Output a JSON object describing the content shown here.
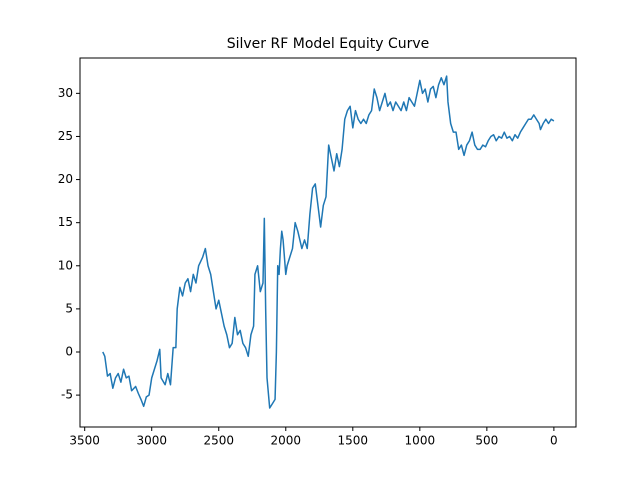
{
  "chart_data": {
    "type": "line",
    "title": "Silver RF Model Equity Curve",
    "x": [
      3365,
      3350,
      3330,
      3310,
      3290,
      3270,
      3250,
      3230,
      3210,
      3190,
      3170,
      3150,
      3120,
      3100,
      3080,
      3060,
      3040,
      3020,
      3000,
      2980,
      2960,
      2940,
      2930,
      2900,
      2880,
      2860,
      2840,
      2820,
      2810,
      2790,
      2770,
      2750,
      2730,
      2710,
      2690,
      2670,
      2650,
      2620,
      2600,
      2580,
      2560,
      2540,
      2520,
      2500,
      2480,
      2460,
      2440,
      2420,
      2400,
      2380,
      2360,
      2340,
      2320,
      2300,
      2280,
      2260,
      2240,
      2230,
      2210,
      2190,
      2170,
      2160,
      2150,
      2140,
      2120,
      2100,
      2080,
      2070,
      2060,
      2050,
      2040,
      2030,
      2020,
      2000,
      1990,
      1970,
      1950,
      1930,
      1910,
      1880,
      1860,
      1840,
      1820,
      1800,
      1780,
      1760,
      1740,
      1720,
      1700,
      1690,
      1680,
      1660,
      1640,
      1620,
      1600,
      1580,
      1560,
      1540,
      1520,
      1500,
      1480,
      1460,
      1440,
      1420,
      1400,
      1380,
      1360,
      1340,
      1320,
      1300,
      1280,
      1260,
      1240,
      1220,
      1200,
      1180,
      1160,
      1140,
      1120,
      1100,
      1080,
      1060,
      1040,
      1020,
      1000,
      980,
      960,
      940,
      920,
      900,
      880,
      860,
      840,
      820,
      800,
      790,
      770,
      750,
      730,
      710,
      690,
      670,
      650,
      630,
      610,
      590,
      570,
      550,
      530,
      510,
      490,
      470,
      450,
      430,
      410,
      390,
      370,
      350,
      330,
      310,
      290,
      270,
      250,
      230,
      210,
      190,
      170,
      150,
      130,
      110,
      100,
      80,
      60,
      40,
      20,
      0
    ],
    "series": [
      {
        "color": "#1f77b4",
        "values": [
          0,
          -0.5,
          -2.8,
          -2.5,
          -4.2,
          -3,
          -2.5,
          -3.5,
          -2,
          -3,
          -2.8,
          -4.5,
          -4,
          -4.8,
          -5.5,
          -6.3,
          -5.2,
          -5,
          -3,
          -2,
          -1,
          0.3,
          -3,
          -3.8,
          -2.5,
          -3.8,
          0.5,
          0.5,
          5,
          7.5,
          6.5,
          8,
          8.5,
          7,
          9,
          8,
          10,
          11,
          12,
          10,
          9,
          7,
          5,
          6,
          4.5,
          3,
          2,
          0.5,
          1,
          4,
          2,
          2.5,
          1,
          0.5,
          -0.5,
          2,
          3,
          9,
          10,
          7,
          8,
          15.5,
          5,
          -3,
          -6.5,
          -6,
          -5.5,
          0,
          10,
          9,
          12,
          14,
          13,
          9,
          10,
          11,
          12,
          15,
          14,
          12,
          13,
          12,
          16,
          19,
          19.5,
          17,
          14.5,
          17,
          18,
          21,
          24,
          22.5,
          21,
          23,
          21.5,
          23.5,
          27,
          28,
          28.5,
          26,
          28,
          27,
          26.5,
          27,
          26.5,
          27.5,
          28,
          30.5,
          29.5,
          28,
          29,
          30,
          28.5,
          29,
          28,
          29,
          28.5,
          28,
          29,
          28,
          29.5,
          29,
          28.5,
          30,
          31.5,
          30,
          30.5,
          29,
          30.5,
          30.8,
          29.5,
          31,
          31.8,
          31,
          32,
          29,
          26.5,
          25.5,
          25.5,
          23.5,
          24,
          22.8,
          24,
          24.5,
          25.5,
          24,
          23.5,
          23.5,
          24,
          23.8,
          24.5,
          25,
          25.2,
          24.5,
          25,
          24.8,
          25.5,
          24.8,
          25,
          24.5,
          25.2,
          24.8,
          25.5,
          26,
          26.5,
          27,
          27,
          27.5,
          27,
          26.5,
          25.8,
          26.5,
          27,
          26.5,
          27,
          26.8
        ]
      }
    ],
    "xlim": [
      3535,
      -165
    ],
    "ylim": [
      -8.7,
      34.1
    ],
    "xticks": [
      3500,
      3000,
      2500,
      2000,
      1500,
      1000,
      500,
      0
    ],
    "yticks": [
      -5,
      0,
      5,
      10,
      15,
      20,
      25,
      30
    ]
  }
}
